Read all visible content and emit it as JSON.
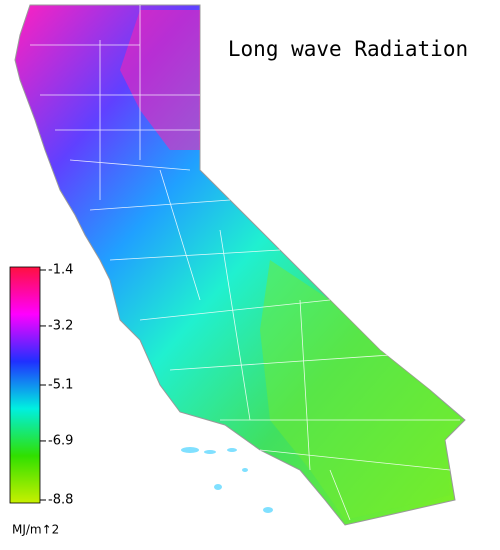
{
  "map": {
    "title": "Long wave Radiation",
    "colorbar": {
      "clim": [
        -8.8,
        -1.4
      ],
      "ticks": [
        -1.4,
        -3.2,
        -5.1,
        -6.9,
        -8.8
      ],
      "colors": [
        "#c8f000",
        "#30e000",
        "#00f0e0",
        "#2030ff",
        "#ff00ff",
        "#ff1040"
      ],
      "unit": "MJ/m↑2"
    }
  }
}
